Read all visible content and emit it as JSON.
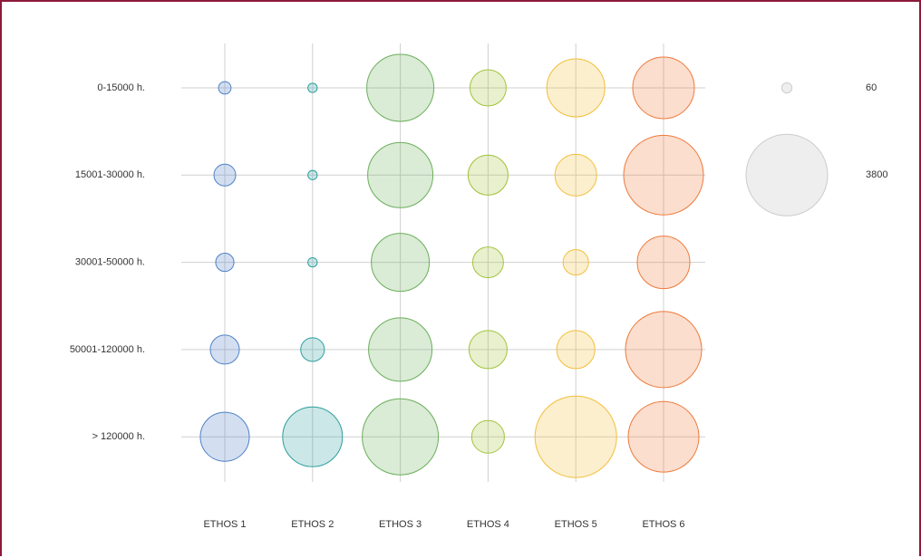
{
  "chart_data": {
    "type": "bubble",
    "categories": [
      "0-15000 h.",
      "15001-30000 h.",
      "30001-50000 h.",
      "50001-120000 h.",
      "> 120000 h."
    ],
    "series": [
      {
        "name": "ETHOS 1",
        "color": "#4f81c7",
        "values": [
          90,
          270,
          190,
          480,
          1370
        ]
      },
      {
        "name": "ETHOS 2",
        "color": "#2e9e9e",
        "values": [
          50,
          50,
          50,
          320,
          2040
        ]
      },
      {
        "name": "ETHOS 3",
        "color": "#6aaf5a",
        "values": [
          2570,
          2430,
          1920,
          2300,
          3310
        ]
      },
      {
        "name": "ETHOS 4",
        "color": "#a3c43c",
        "values": [
          750,
          910,
          540,
          830,
          610
        ]
      },
      {
        "name": "ETHOS 5",
        "color": "#f2bf3a",
        "values": [
          1920,
          990,
          370,
          830,
          3800
        ]
      },
      {
        "name": "ETHOS 6",
        "color": "#ee7a3c",
        "values": [
          2170,
          3630,
          1580,
          3310,
          2850
        ]
      }
    ],
    "size_legend": [
      60,
      3800
    ],
    "grid": true
  }
}
